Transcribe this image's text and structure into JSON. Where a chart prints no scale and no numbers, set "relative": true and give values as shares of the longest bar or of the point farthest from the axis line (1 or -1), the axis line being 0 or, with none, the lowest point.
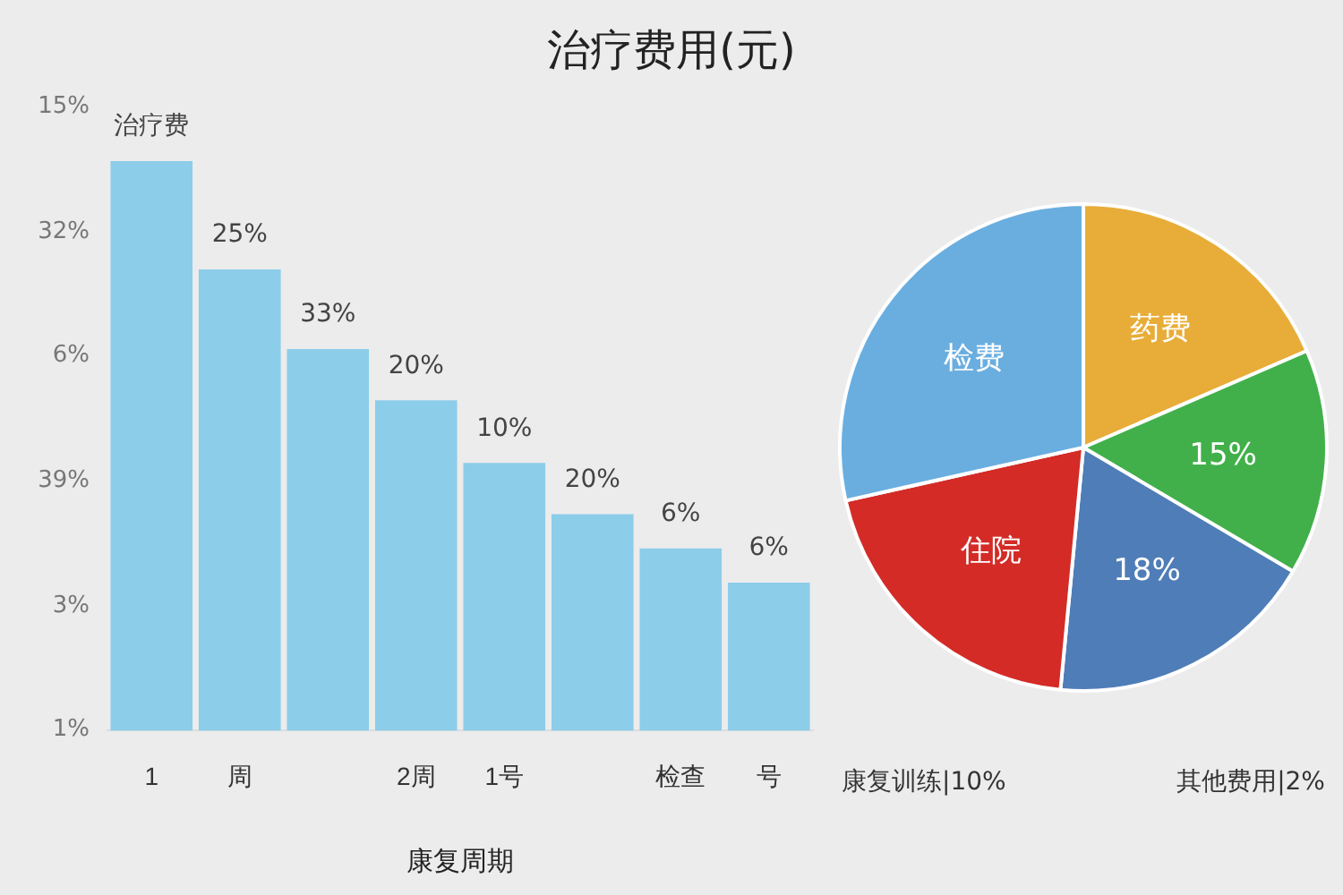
{
  "chart_data": [
    {
      "type": "bar",
      "title": "治疗费用(元)",
      "xlabel": "康复周期",
      "relative": true,
      "categories": [
        "1",
        "周",
        null,
        "2周",
        "1号",
        null,
        "检查",
        "号"
      ],
      "values": [
        1,
        0.81,
        0.67,
        0.58,
        0.47,
        0.38,
        0.32,
        0.26
      ],
      "color": "#8ccde9",
      "annotations": [
        {
          "text": "治疗费",
          "y": 1
        },
        {
          "text": "25%",
          "y": 0.81
        },
        {
          "text": "33%",
          "y": 0.67
        },
        {
          "text": "20%",
          "y": 0.58
        },
        {
          "text": "10%",
          "y": 0.47
        },
        {
          "text": "20%",
          "y": 0.38
        },
        {
          "text": "6%",
          "y": 0.32
        },
        {
          "text": "6%",
          "y": 0.26
        },
        "15%",
        "32%",
        "6%",
        "39%",
        "3%",
        "1%"
      ]
    },
    {
      "type": "pie",
      "categories": [
        "药费",
        null,
        null,
        "住院",
        "检费"
      ],
      "values": [
        18.5,
        15,
        18,
        20,
        28.5
      ],
      "value_labels": [
        null,
        "15%",
        "18%",
        null,
        null
      ],
      "colors": [
        "#e8ad38",
        "#42b04a",
        "#4f7db8",
        "#d42b27",
        "#6aaee0"
      ],
      "annotations": [
        "康复训练|10%",
        "其他费用|2%"
      ]
    }
  ]
}
